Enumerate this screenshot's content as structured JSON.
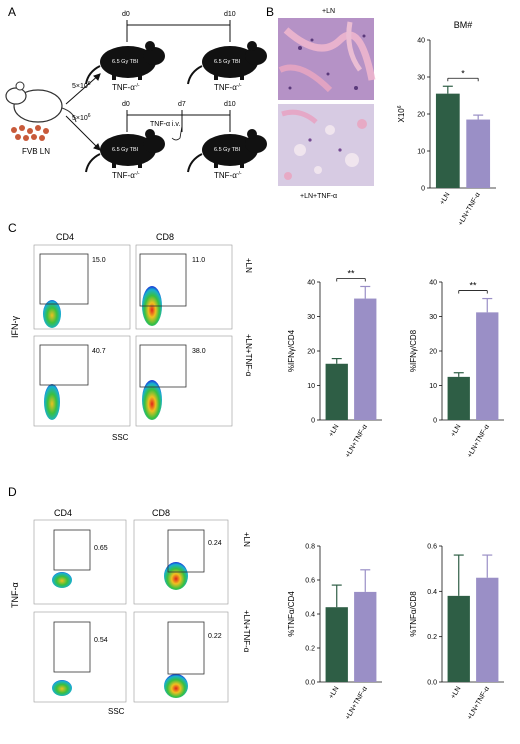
{
  "panels": {
    "A": "A",
    "B": "B",
    "C": "C",
    "D": "D"
  },
  "panelA": {
    "mouse_label": "FVB LN",
    "dose_top": "5×10",
    "dose_bottom": "5×10",
    "dose_exp": "6",
    "d0_top": "d0",
    "d10_top": "d10",
    "d0_bot": "d0",
    "d7_bot": "d7",
    "d10_bot": "d10",
    "tbi": "6.5 Gy TBI",
    "genotype": "TNF-α",
    "genotype_sup": "-/-",
    "treatment": "TNF-α i.v."
  },
  "panelB": {
    "histo_top_label": "+LN",
    "histo_bottom_label": "+LN+TNF-α"
  },
  "flowC": {
    "col_left": "CD4",
    "col_right": "CD8",
    "ylabel": "IFN-γ",
    "xlabel": "SSC",
    "row_top": "+LN",
    "row_bottom": "+LN+TNF-α",
    "gates": [
      "15.0",
      "11.0",
      "40.7",
      "38.0"
    ]
  },
  "flowD": {
    "col_left": "CD4",
    "col_right": "CD8",
    "ylabel": "TNF-α",
    "xlabel": "SSC",
    "row_top": "+LN",
    "row_bottom": "+LN+TNF-α",
    "gates": [
      "0.65",
      "0.24",
      "0.54",
      "0.22"
    ]
  },
  "colors": {
    "green": "#2e5e45",
    "purple": "#9a8fc6"
  },
  "chart_data": [
    {
      "id": "bm",
      "type": "bar",
      "title": "BM#",
      "ylabel": "X10",
      "ylabel_sup": "6",
      "categories": [
        "+LN",
        "+LN+TNF-α"
      ],
      "values": [
        25.5,
        18.5
      ],
      "errors": [
        2,
        1.2
      ],
      "ylim": [
        0,
        40
      ],
      "yticks": [
        0,
        10,
        20,
        30,
        40
      ],
      "significance": "*"
    },
    {
      "id": "ifn_cd4",
      "type": "bar",
      "title": "",
      "ylabel": "%IFNγ/CD4",
      "categories": [
        "+LN",
        "+LN+TNF-α"
      ],
      "values": [
        16.3,
        35.2
      ],
      "errors": [
        1.5,
        3.5
      ],
      "ylim": [
        0,
        40
      ],
      "yticks": [
        0,
        10,
        20,
        30,
        40
      ],
      "significance": "**"
    },
    {
      "id": "ifn_cd8",
      "type": "bar",
      "title": "",
      "ylabel": "%IFNγ/CD8",
      "categories": [
        "+LN",
        "+LN+TNF-α"
      ],
      "values": [
        12.5,
        31.2
      ],
      "errors": [
        1.2,
        4.0
      ],
      "ylim": [
        0,
        40
      ],
      "yticks": [
        0,
        10,
        20,
        30,
        40
      ],
      "significance": "**"
    },
    {
      "id": "tnf_cd4",
      "type": "bar",
      "title": "",
      "ylabel": "%TNFα/CD4",
      "categories": [
        "+LN",
        "+LN+TNF-α"
      ],
      "values": [
        0.44,
        0.53
      ],
      "errors": [
        0.13,
        0.13
      ],
      "ylim": [
        0,
        0.8
      ],
      "yticks": [
        0.0,
        0.2,
        0.4,
        0.6,
        0.8
      ],
      "ytick_labels": [
        "0.0",
        "0.2",
        "0.4",
        "0.6",
        "0.8"
      ],
      "significance": ""
    },
    {
      "id": "tnf_cd8",
      "type": "bar",
      "title": "",
      "ylabel": "%TNFα/CD8",
      "categories": [
        "+LN",
        "+LN+TNF-α"
      ],
      "values": [
        0.38,
        0.46
      ],
      "errors": [
        0.18,
        0.1
      ],
      "ylim": [
        0,
        0.6
      ],
      "yticks": [
        0.0,
        0.2,
        0.4,
        0.6
      ],
      "ytick_labels": [
        "0.0",
        "0.2",
        "0.4",
        "0.6"
      ],
      "significance": ""
    }
  ]
}
